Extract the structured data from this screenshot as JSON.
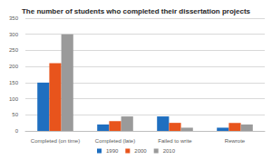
{
  "chart_data": {
    "type": "bar",
    "title": "The number of students who completed their dissertation projects",
    "categories": [
      "Completed (on time)",
      "Completed (late)",
      "Failed to write",
      "Rewrote"
    ],
    "series": [
      {
        "name": "1990",
        "color": "#1f6fc0",
        "values": [
          150,
          20,
          45,
          10
        ]
      },
      {
        "name": "2000",
        "color": "#e8541c",
        "values": [
          210,
          30,
          25,
          25
        ]
      },
      {
        "name": "2010",
        "color": "#9a9a9a",
        "values": [
          300,
          45,
          10,
          20
        ]
      }
    ],
    "ylim": [
      0,
      350
    ],
    "yticks": [
      0,
      50,
      100,
      150,
      200,
      250,
      300,
      350
    ],
    "grid": true,
    "legend": "bottom"
  }
}
